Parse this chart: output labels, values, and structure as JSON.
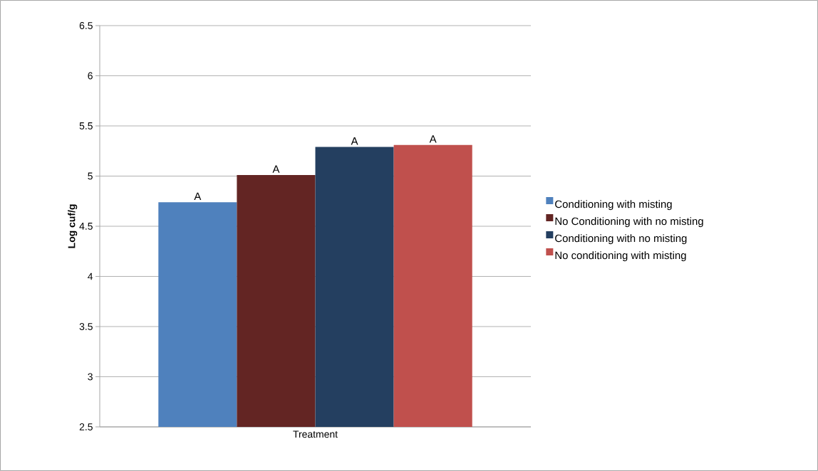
{
  "chart_data": {
    "type": "bar",
    "xlabel": "Treatment",
    "ylabel": "Log cuf/g",
    "categories": [
      null
    ],
    "series": [
      {
        "name": "Conditioning with misting",
        "color": "#4f81bd",
        "values": [
          4.74
        ]
      },
      {
        "name": "No Conditioning with no misting",
        "color": "#632523",
        "values": [
          5.01
        ]
      },
      {
        "name": "Conditioning with no misting",
        "color": "#243f60",
        "values": [
          5.29
        ]
      },
      {
        "name": "No conditioning with misting",
        "color": "#c0504d",
        "values": [
          5.31
        ]
      }
    ],
    "annotations": [
      "A",
      "A",
      "A",
      "A"
    ],
    "ylim": [
      2.5,
      6.5
    ],
    "yticks": [
      2.5,
      3,
      3.5,
      4,
      4.5,
      5,
      5.5,
      6,
      6.5
    ],
    "grid": "y",
    "legend": "right"
  }
}
